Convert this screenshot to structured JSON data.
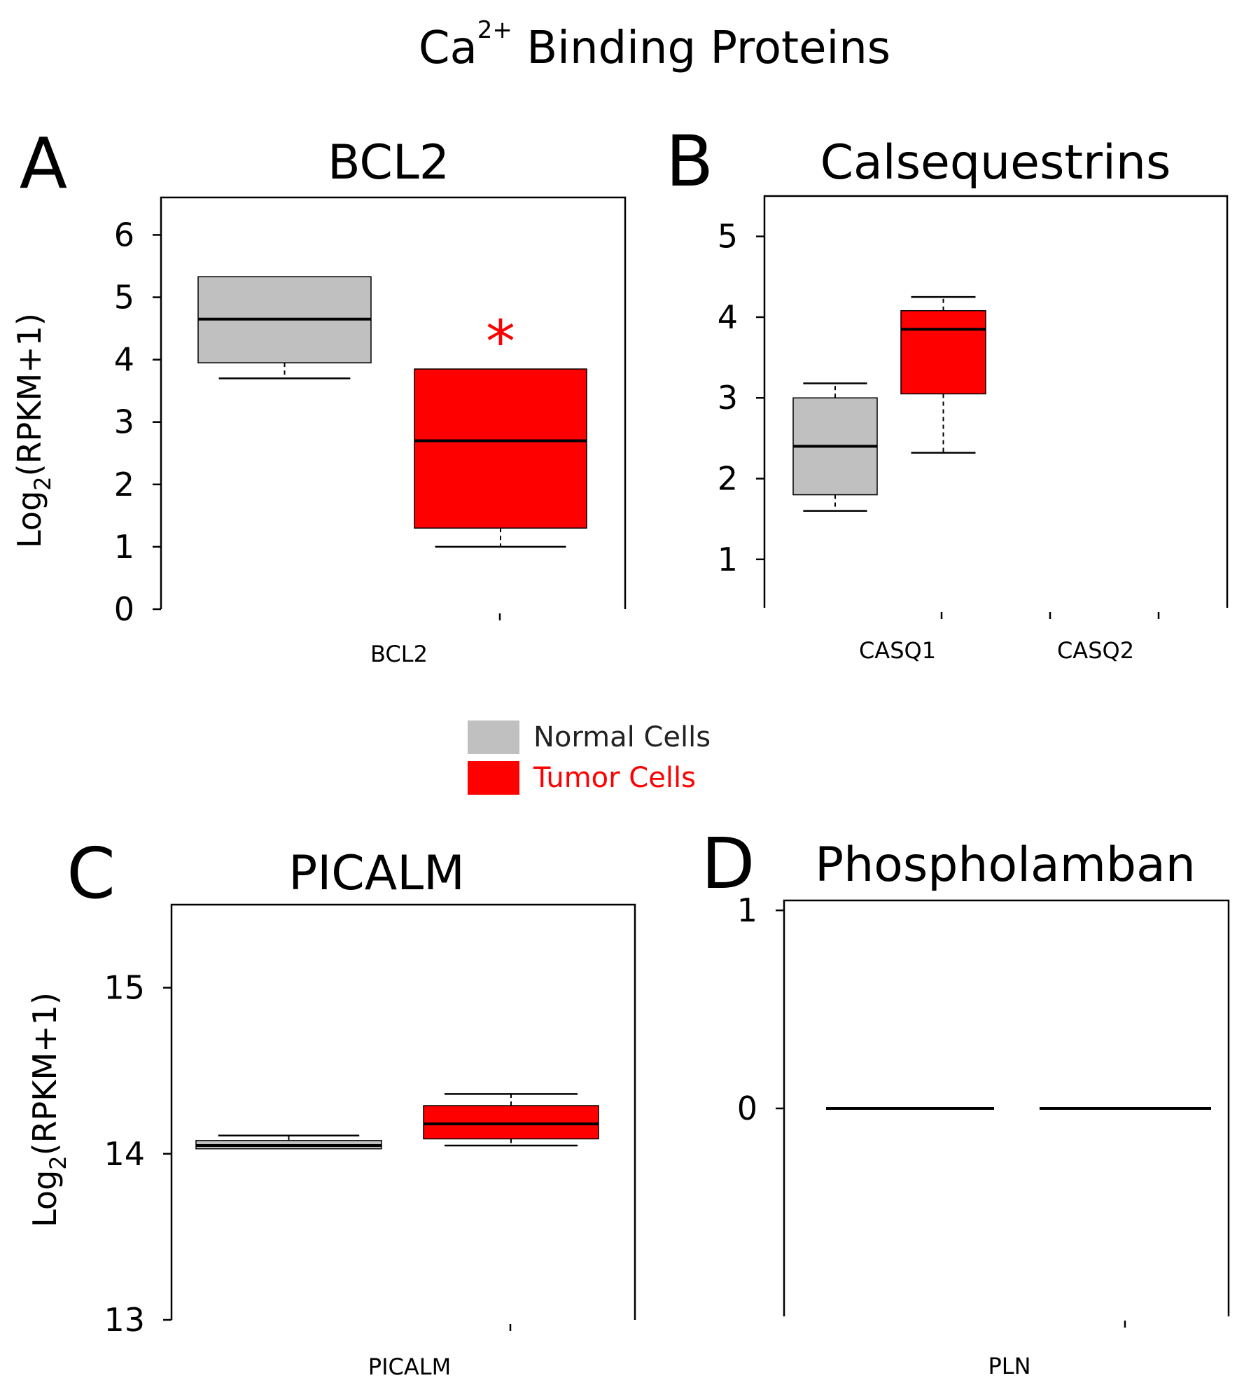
{
  "title": {
    "main": "Ca",
    "superscript": "2+",
    "rest": " Binding Proteins"
  },
  "colors": {
    "normal": "#c0c0c0",
    "tumor": "#ff0000",
    "text": "#000000",
    "significance": "#ff0000"
  },
  "legend": [
    {
      "label": "Normal Cells",
      "color": "#c0c0c0",
      "text_color": "#222222"
    },
    {
      "label": "Tumor Cells",
      "color": "#ff0000",
      "text_color": "#ff0000"
    }
  ],
  "chart_data": [
    {
      "panel": "A",
      "type": "box",
      "title": "BCL2",
      "ylabel": "Log2(RPKM+1)",
      "ylim": [
        0,
        6.6
      ],
      "yticks": [
        0,
        1,
        2,
        3,
        4,
        5,
        6
      ],
      "categories": [
        "BCL2"
      ],
      "boxes": [
        {
          "category": "BCL2",
          "group": "Normal Cells",
          "q1": 3.95,
          "median": 4.65,
          "q3": 5.33,
          "whisker_low": 3.7,
          "whisker_high": 5.33
        },
        {
          "category": "BCL2",
          "group": "Tumor Cells",
          "q1": 1.3,
          "median": 2.7,
          "q3": 3.85,
          "whisker_low": 1.0,
          "whisker_high": 3.85,
          "significant": true
        }
      ],
      "annotation": "*"
    },
    {
      "panel": "B",
      "type": "box",
      "title": "Calsequestrins",
      "ylabel": "",
      "ylim": [
        0.4,
        5.5
      ],
      "yticks": [
        1,
        2,
        3,
        4,
        5
      ],
      "categories": [
        "CASQ1",
        "CASQ2"
      ],
      "boxes": [
        {
          "category": "CASQ1",
          "group": "Normal Cells",
          "q1": 1.8,
          "median": 2.4,
          "q3": 3.0,
          "whisker_low": 1.6,
          "whisker_high": 3.18
        },
        {
          "category": "CASQ1",
          "group": "Tumor Cells",
          "q1": 3.05,
          "median": 3.85,
          "q3": 4.08,
          "whisker_low": 2.32,
          "whisker_high": 4.25
        }
      ]
    },
    {
      "panel": "C",
      "type": "box",
      "title": "PICALM",
      "ylabel": "Log2(RPKM+1)",
      "ylim": [
        13.0,
        15.5
      ],
      "yticks": [
        13,
        14,
        15
      ],
      "categories": [
        "PICALM"
      ],
      "boxes": [
        {
          "category": "PICALM",
          "group": "Normal Cells",
          "q1": 14.03,
          "median": 14.05,
          "q3": 14.08,
          "whisker_low": 14.03,
          "whisker_high": 14.11
        },
        {
          "category": "PICALM",
          "group": "Tumor Cells",
          "q1": 14.09,
          "median": 14.18,
          "q3": 14.29,
          "whisker_low": 14.05,
          "whisker_high": 14.36
        }
      ]
    },
    {
      "panel": "D",
      "type": "box",
      "title": "Phospholamban",
      "ylabel": "",
      "ylim": [
        -1.05,
        1.05
      ],
      "yticks": [
        0,
        1
      ],
      "categories": [
        "PLN"
      ],
      "boxes": [
        {
          "category": "PLN",
          "group": "Normal Cells",
          "q1": 0,
          "median": 0,
          "q3": 0,
          "whisker_low": 0,
          "whisker_high": 0
        },
        {
          "category": "PLN",
          "group": "Tumor Cells",
          "q1": 0,
          "median": 0,
          "q3": 0,
          "whisker_low": 0,
          "whisker_high": 0
        }
      ]
    }
  ]
}
